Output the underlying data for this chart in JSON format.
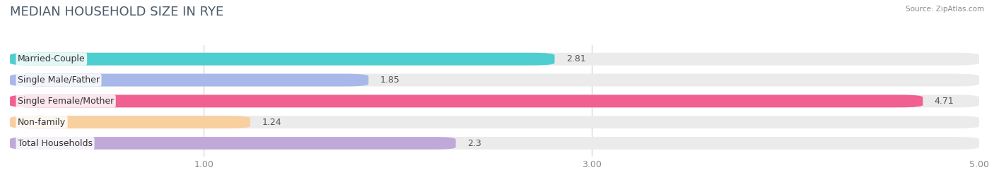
{
  "title": "MEDIAN HOUSEHOLD SIZE IN RYE",
  "source": "Source: ZipAtlas.com",
  "categories": [
    "Married-Couple",
    "Single Male/Father",
    "Single Female/Mother",
    "Non-family",
    "Total Households"
  ],
  "values": [
    2.81,
    1.85,
    4.71,
    1.24,
    2.3
  ],
  "bar_colors": [
    "#4ecece",
    "#a8b8e8",
    "#f06090",
    "#f8d0a0",
    "#c0a8d8"
  ],
  "xlim": [
    0.0,
    5.0
  ],
  "xticks": [
    1.0,
    3.0,
    5.0
  ],
  "background_color": "#ffffff",
  "bar_bg_color": "#ebebeb",
  "title_fontsize": 13,
  "label_fontsize": 9,
  "value_fontsize": 9,
  "bar_height": 0.6,
  "bar_gap": 0.18
}
